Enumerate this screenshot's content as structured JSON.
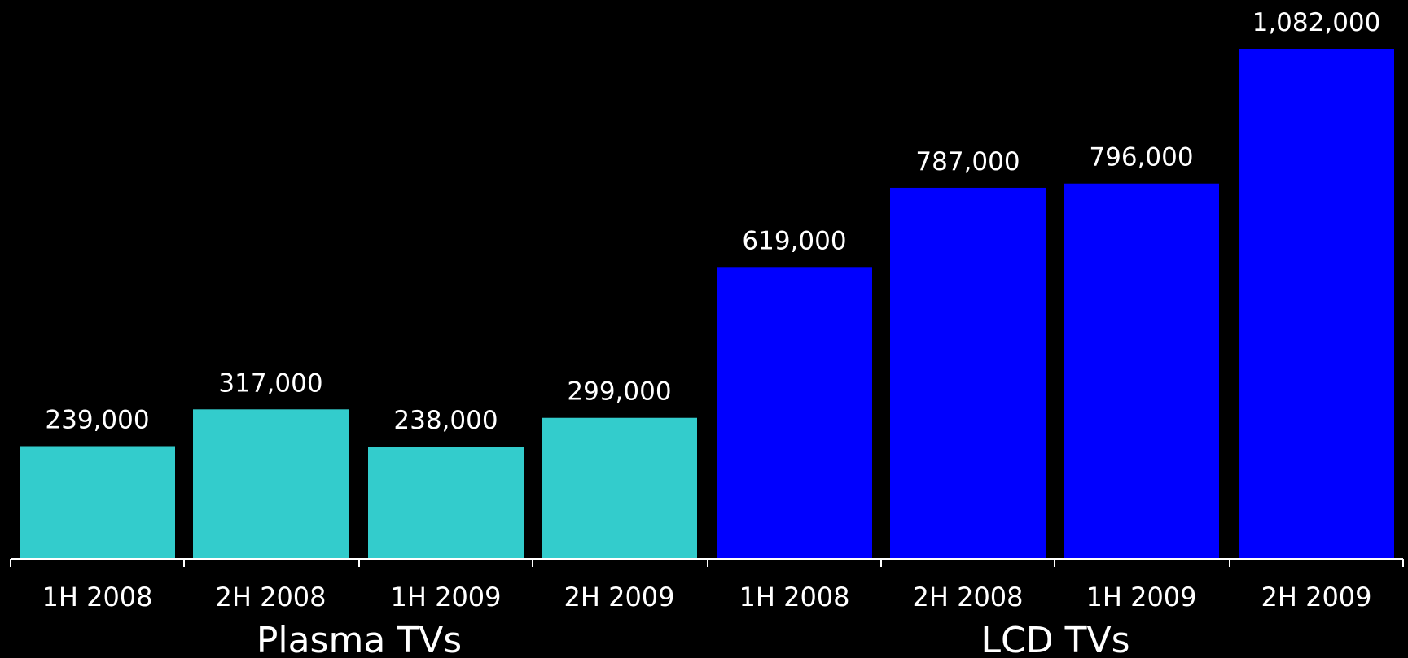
{
  "chart_data": {
    "type": "bar",
    "categories": [
      "1H 2008",
      "2H 2008",
      "1H 2009",
      "2H 2009",
      "1H 2008",
      "2H 2008",
      "1H 2009",
      "2H 2009"
    ],
    "values": [
      239000,
      317000,
      238000,
      299000,
      619000,
      787000,
      796000,
      1082000
    ],
    "value_labels": [
      "239,000",
      "317,000",
      "238,000",
      "299,000",
      "619,000",
      "787,000",
      "796,000",
      "1,082,000"
    ],
    "groups": [
      {
        "label": "Plasma TVs",
        "color": "#33cccc",
        "categories": [
          "1H 2008",
          "2H 2008",
          "1H 2009",
          "2H 2009"
        ]
      },
      {
        "label": "LCD TVs",
        "color": "#0000ff",
        "categories": [
          "1H 2008",
          "2H 2008",
          "1H 2009",
          "2H 2009"
        ]
      }
    ],
    "title": "",
    "xlabel": "",
    "ylabel": "",
    "ylim": [
      0,
      1082000
    ],
    "grid": false,
    "legend": "none"
  },
  "colors": {
    "background": "#000000",
    "axis": "#ffffff",
    "text": "#ffffff",
    "plasma": "#33cccc",
    "lcd": "#0000ff"
  }
}
